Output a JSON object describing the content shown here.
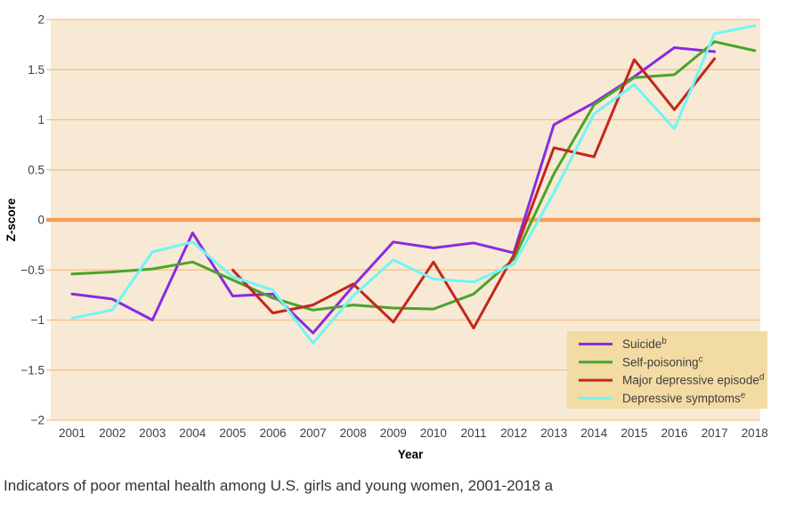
{
  "figure": {
    "caption": "Indicators of poor mental health among U.S. girls and young women, 2001-2018 a"
  },
  "style": {
    "plot_bg": "#f7e9d4",
    "grid_color": "#f9bd83",
    "zero_line_color": "#f59c5d",
    "legend_bg": "#f3dba4",
    "text_color": "#3f3f3f",
    "caption_color": "#333333"
  },
  "chart_data": {
    "type": "line",
    "title": "",
    "xlabel": "Year",
    "ylabel": "Z-score",
    "x": [
      2001,
      2002,
      2003,
      2004,
      2005,
      2006,
      2007,
      2008,
      2009,
      2010,
      2011,
      2012,
      2013,
      2014,
      2015,
      2016,
      2017,
      2018
    ],
    "xlim": [
      2001,
      2018
    ],
    "ylim": [
      -2,
      2
    ],
    "ytick_labels": [
      "2",
      "1.5",
      "1",
      "0.5",
      "0",
      "−0.5",
      "−1",
      "−1.5",
      "−2"
    ],
    "ytick_values": [
      2,
      1.5,
      1,
      0.5,
      0,
      -0.5,
      -1,
      -1.5,
      -2
    ],
    "grid": true,
    "zero_line": true,
    "legend_position": "lower-right",
    "series": [
      {
        "name": "Suicide",
        "sup": "b",
        "color": "#8a2be2",
        "values": [
          -0.74,
          -0.79,
          -1.0,
          -0.13,
          -0.76,
          -0.74,
          -1.13,
          -0.66,
          -0.22,
          -0.28,
          -0.23,
          -0.33,
          0.95,
          1.17,
          1.43,
          1.72,
          1.68,
          null
        ]
      },
      {
        "name": "Self-poisoning",
        "sup": "c",
        "color": "#4ba32b",
        "values": [
          -0.54,
          -0.52,
          -0.49,
          -0.42,
          -0.6,
          -0.78,
          -0.9,
          -0.85,
          -0.88,
          -0.89,
          -0.74,
          -0.39,
          0.46,
          1.15,
          1.42,
          1.45,
          1.78,
          1.69
        ]
      },
      {
        "name": "Major depressive episode",
        "sup": "d",
        "color": "#c3271d",
        "values": [
          null,
          null,
          null,
          null,
          -0.5,
          -0.93,
          -0.85,
          -0.64,
          -1.02,
          -0.42,
          -1.08,
          -0.35,
          0.72,
          0.63,
          1.6,
          1.1,
          1.61,
          null
        ]
      },
      {
        "name": "Depressive symptoms",
        "sup": "e",
        "color": "#70f5f5",
        "values": [
          -0.98,
          -0.9,
          -0.32,
          -0.22,
          -0.57,
          -0.7,
          -1.23,
          -0.76,
          -0.4,
          -0.59,
          -0.62,
          -0.44,
          0.27,
          1.06,
          1.35,
          0.91,
          1.86,
          1.94
        ]
      }
    ]
  }
}
